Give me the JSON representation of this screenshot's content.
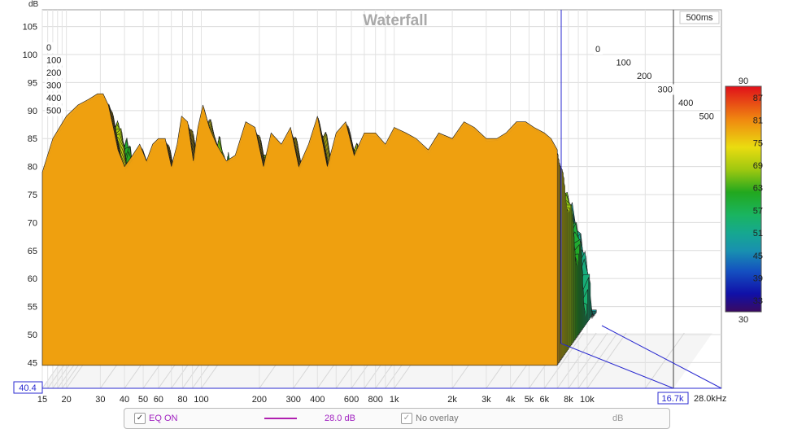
{
  "chart_data": {
    "type": "waterfall",
    "title": "Waterfall",
    "y_axis_label": "dB",
    "y_ticks": [
      "105",
      "100",
      "95",
      "90",
      "85",
      "80",
      "75",
      "70",
      "65",
      "60",
      "55",
      "50",
      "45"
    ],
    "y_cursor_value": "40.4",
    "x_ticks": [
      "15",
      "20",
      "30",
      "40",
      "50",
      "60",
      "80",
      "100",
      "200",
      "300",
      "400",
      "600",
      "800",
      "1k",
      "2k",
      "3k",
      "4k",
      "5k",
      "6k",
      "8k",
      "10k"
    ],
    "x_cursor_value": "16.7k",
    "x_end_label": "28.0kHz",
    "time_label": "500ms",
    "time_ticks_left": [
      "0",
      "100",
      "200",
      "300",
      "400",
      "500"
    ],
    "time_ticks_right": [
      "0",
      "100",
      "200",
      "300",
      "400",
      "500"
    ],
    "colorbar_ticks": [
      "90",
      "87",
      "81",
      "75",
      "69",
      "63",
      "57",
      "51",
      "45",
      "39",
      "33",
      "30"
    ],
    "colorbar_range": [
      30,
      90
    ],
    "frequency_range_hz": [
      15,
      28000
    ],
    "level_range_db": [
      40.4,
      108
    ],
    "time_range_ms": [
      0,
      500
    ],
    "front_slice": {
      "freq_hz": [
        15,
        17,
        20,
        23,
        26,
        29,
        31,
        33,
        35,
        37,
        40,
        44,
        48,
        52,
        56,
        60,
        65,
        70,
        75,
        79,
        85,
        91,
        96,
        102,
        110,
        120,
        135,
        150,
        170,
        190,
        210,
        230,
        260,
        290,
        320,
        360,
        400,
        450,
        500,
        560,
        620,
        700,
        800,
        900,
        1000,
        1150,
        1300,
        1500,
        1700,
        2000,
        2300,
        2600,
        3000,
        3400,
        3800,
        4300,
        4800,
        5300,
        6000,
        6500,
        7000
      ],
      "level_db": [
        79,
        85,
        89,
        91,
        92,
        93,
        93,
        91,
        87,
        83,
        80,
        82,
        84,
        81,
        84,
        85,
        85,
        80,
        84,
        89,
        88,
        81,
        87,
        91,
        87,
        84,
        81,
        82,
        88,
        87,
        80,
        86,
        84,
        87,
        80,
        84,
        89,
        80,
        86,
        88,
        82,
        86,
        86,
        84,
        87,
        86,
        85,
        83,
        86,
        85,
        88,
        87,
        85,
        85,
        86,
        88,
        88,
        87,
        86,
        85,
        83
      ]
    },
    "colors": {
      "accent": "#2a2ad0",
      "cursor": "#3a3a3a",
      "grid": "#d9d9d9",
      "eq_curve": "#b020b0",
      "eq_text": "#a020c0"
    }
  },
  "controls": {
    "eq_label": "EQ ON",
    "eq_value": "28.0 dB",
    "overlay_label": "No overlay",
    "overlay_unit": "dB",
    "check_glyph": "✓"
  }
}
